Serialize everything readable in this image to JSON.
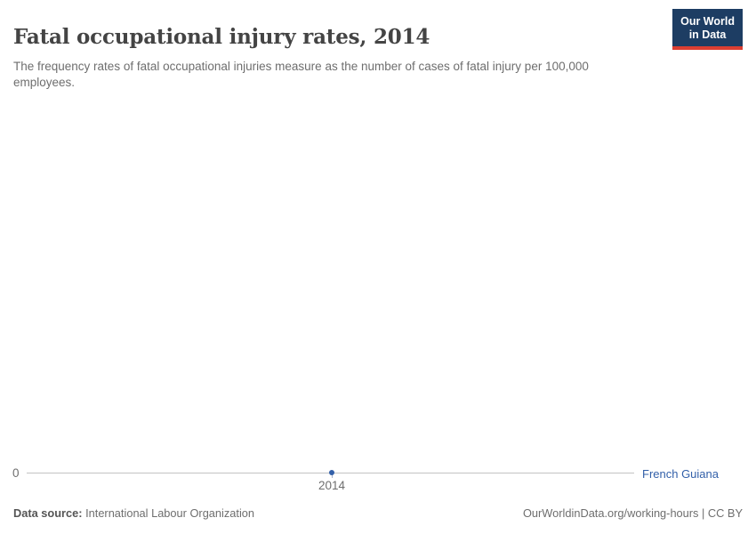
{
  "header": {
    "title": "Fatal occupational injury rates, 2014",
    "subtitle": "The frequency rates of fatal occupational injuries measure as the number of cases of fatal injury per 100,000 employees."
  },
  "logo": {
    "line1": "Our World",
    "line2": "in Data",
    "bg_color": "#1d3d63",
    "stripe_color": "#dc3e32"
  },
  "chart_data": {
    "type": "line",
    "title": "Fatal occupational injury rates, 2014",
    "x": [
      2014
    ],
    "series": [
      {
        "name": "French Guiana",
        "values": [
          0
        ],
        "color": "#3360a9"
      }
    ],
    "xlabel": "",
    "ylabel": "",
    "x_tick_labels": [
      "2014"
    ],
    "y_tick_labels": [
      "0"
    ],
    "ylim_shown_baseline": 0,
    "grid": false,
    "legend_position": "right-of-axis-end",
    "note": "single data point at y=0 rendered on the zero baseline"
  },
  "axis": {
    "zero_label": "0",
    "year_tick_label": "2014"
  },
  "series_label": "French Guiana",
  "footer": {
    "source_label": "Data source:",
    "source_value": " International Labour Organization",
    "url_text": "OurWorldinData.org/working-hours",
    "separator": " | ",
    "license": "CC BY"
  },
  "colors": {
    "accent_series_blue": "#3360a9",
    "axis_line_gray": "#c3c3c3",
    "body_text_gray": "#6e6e6e",
    "title_dark": "#444444",
    "logo_navy": "#1d3d63",
    "logo_red": "#dc3e32"
  }
}
